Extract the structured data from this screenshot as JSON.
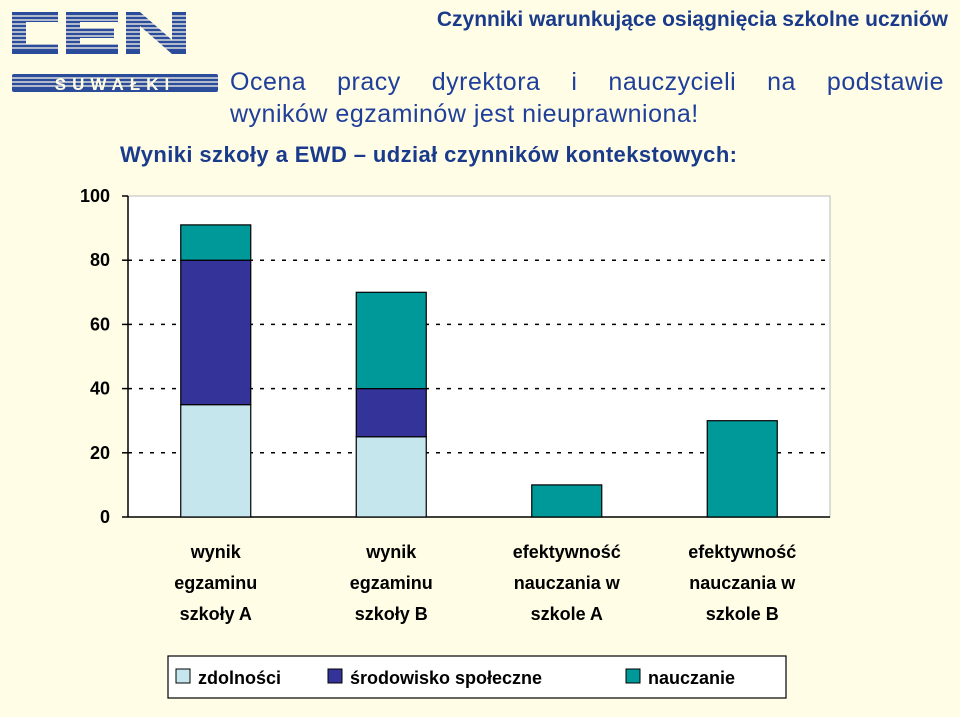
{
  "header": {
    "title": "Czynniki warunkujące osiągnięcia szkolne uczniów",
    "subtitle_line1": "Ocena pracy dyrektora i nauczycieli na podstawie",
    "subtitle_line2": "wyników egzaminów jest nieuprawniona!",
    "chart_heading": "Wyniki szkoły a EWD – udział czynników kontekstowych:"
  },
  "logo": {
    "text_top": "CEN",
    "text_bottom": "SUWAŁKI",
    "color": "#2b4b9b"
  },
  "colors": {
    "zdolnosci": "#c6e6ee",
    "srodowisko": "#333399",
    "nauczanie": "#009999",
    "plot_bg": "#ffffff",
    "text_blue": "#1a3b8c"
  },
  "chart_data": {
    "type": "bar",
    "stacked": true,
    "categories": [
      [
        "wynik",
        "egzaminu",
        "szkoły A"
      ],
      [
        "wynik",
        "egzaminu",
        "szkoły B"
      ],
      [
        "efektywność",
        "nauczania w",
        "szkole A"
      ],
      [
        "efektywność",
        "nauczania w",
        "szkole B"
      ]
    ],
    "series": [
      {
        "name": "zdolności",
        "color": "#c6e6ee",
        "values": [
          35,
          25,
          0,
          0
        ]
      },
      {
        "name": "środowisko społeczne",
        "color": "#333399",
        "values": [
          45,
          15,
          0,
          0
        ]
      },
      {
        "name": "nauczanie",
        "color": "#009999",
        "values": [
          11,
          30,
          10,
          30
        ]
      }
    ],
    "ylim": [
      0,
      100
    ],
    "yticks": [
      0,
      20,
      40,
      60,
      80,
      100
    ],
    "grid": true,
    "legend_position": "bottom"
  }
}
